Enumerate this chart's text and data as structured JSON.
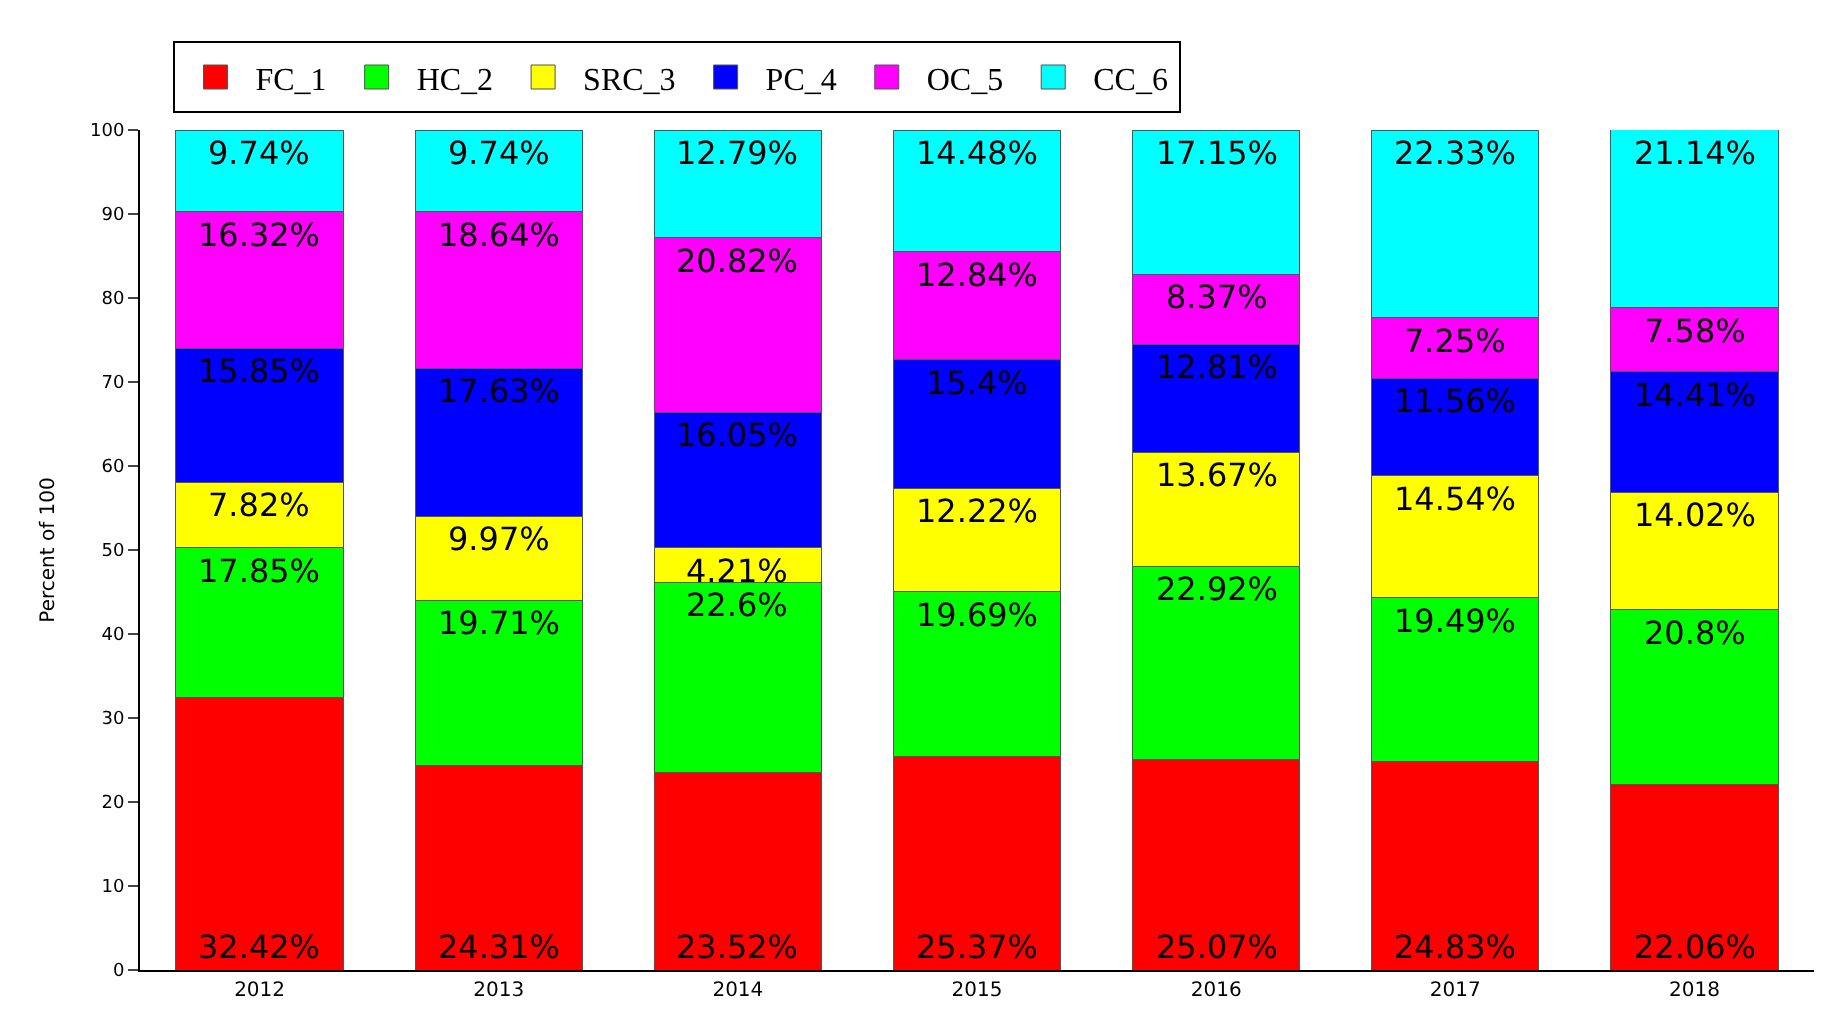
{
  "chart_data": {
    "type": "bar",
    "stacked": true,
    "ylabel": "Percent of 100",
    "categories": [
      "2012",
      "2013",
      "2014",
      "2015",
      "2016",
      "2017",
      "2018"
    ],
    "ylim": [
      0,
      100
    ],
    "yticks": [
      0,
      10,
      20,
      30,
      40,
      50,
      60,
      70,
      80,
      90,
      100
    ],
    "legend": "top",
    "series": [
      {
        "name": "FC_1",
        "color": "#ff0000",
        "values": [
          32.42,
          24.31,
          23.52,
          25.37,
          25.07,
          24.83,
          22.06
        ],
        "value_labels": [
          "32.42%",
          "24.31%",
          "23.52%",
          "25.37%",
          "25.07%",
          "24.83%",
          "22.06%"
        ]
      },
      {
        "name": "HC_2",
        "color": "#00ff00",
        "values": [
          17.85,
          19.71,
          22.6,
          19.69,
          22.92,
          19.49,
          20.8
        ],
        "value_labels": [
          "17.85%",
          "19.71%",
          "22.6%",
          "19.69%",
          "22.92%",
          "19.49%",
          "20.8%"
        ]
      },
      {
        "name": "SRC_3",
        "color": "#ffff00",
        "values": [
          7.82,
          9.97,
          4.21,
          12.22,
          13.67,
          14.54,
          14.02
        ],
        "value_labels": [
          "7.82%",
          "9.97%",
          "4.21%",
          "12.22%",
          "13.67%",
          "14.54%",
          "14.02%"
        ]
      },
      {
        "name": "PC_4",
        "color": "#0000ff",
        "values": [
          15.85,
          17.63,
          16.05,
          15.4,
          12.81,
          11.56,
          14.41
        ],
        "value_labels": [
          "15.85%",
          "17.63%",
          "16.05%",
          "15.4%",
          "12.81%",
          "11.56%",
          "14.41%"
        ]
      },
      {
        "name": "OC_5",
        "color": "#ff00ff",
        "values": [
          16.32,
          18.64,
          20.82,
          12.84,
          8.37,
          7.25,
          7.58
        ],
        "value_labels": [
          "16.32%",
          "18.64%",
          "20.82%",
          "12.84%",
          "8.37%",
          "7.25%",
          "7.58%"
        ]
      },
      {
        "name": "CC_6",
        "color": "#00ffff",
        "values": [
          9.74,
          9.74,
          12.79,
          14.48,
          17.15,
          22.33,
          21.14
        ],
        "value_labels": [
          "9.74%",
          "9.74%",
          "12.79%",
          "14.48%",
          "17.15%",
          "22.33%",
          "21.14%"
        ]
      }
    ]
  }
}
